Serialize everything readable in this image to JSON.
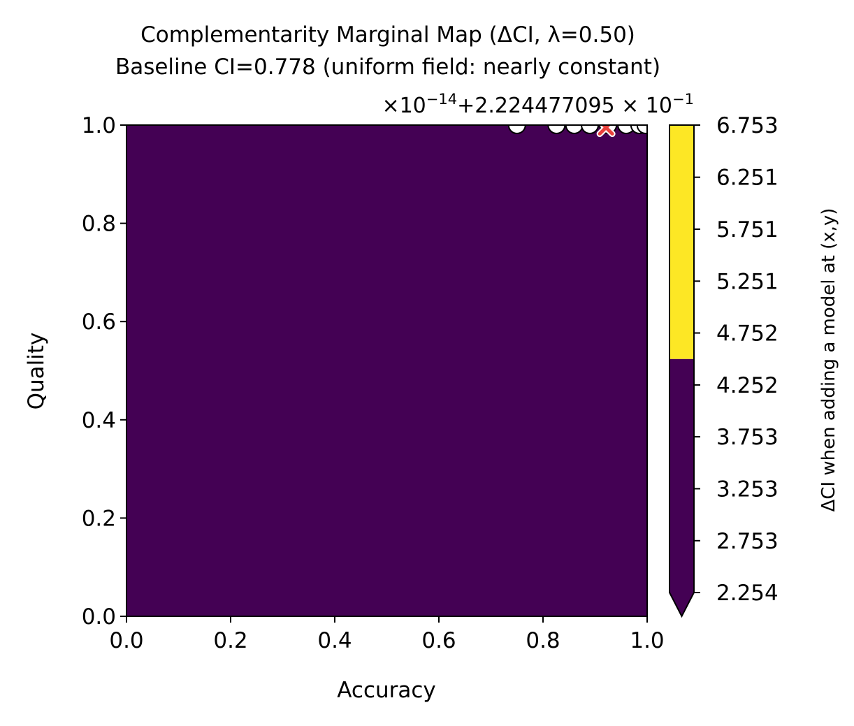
{
  "chart_data": {
    "type": "heatmap",
    "title": "Complementarity Marginal Map (ΔCI, λ=0.50)",
    "subtitle": "Baseline CI=0.778 (uniform field: nearly constant)",
    "xlabel": "Accuracy",
    "ylabel": "Quality",
    "xlim": [
      0.0,
      1.0
    ],
    "ylim": [
      0.0,
      1.0
    ],
    "x_ticks": [
      "0.0",
      "0.2",
      "0.4",
      "0.6",
      "0.8",
      "1.0"
    ],
    "y_ticks": [
      "0.0",
      "0.2",
      "0.4",
      "0.6",
      "0.8",
      "1.0"
    ],
    "field_color": "#440154",
    "grid": false,
    "offset_text": {
      "prefix": "×10",
      "exp1": "−14",
      "middle": "+2.224477095 × 10",
      "exp2": "−1"
    },
    "colorbar": {
      "label": "ΔCI when adding a model at (x,y)",
      "ticks": [
        "2.254",
        "2.753",
        "3.253",
        "3.753",
        "4.252",
        "4.752",
        "5.251",
        "5.751",
        "6.251",
        "6.753"
      ],
      "range": [
        2.254,
        6.753
      ],
      "bands": [
        {
          "from": 2.254,
          "to": 4.502,
          "color": "#440154"
        },
        {
          "from": 4.502,
          "to": 6.753,
          "color": "#fde725"
        }
      ],
      "extend": "min"
    },
    "existing_models": {
      "marker": "circle",
      "face_color": "#ffffff",
      "edge_color": "#000000",
      "points": [
        {
          "x": 0.75,
          "y": 1.0
        },
        {
          "x": 0.826,
          "y": 1.0
        },
        {
          "x": 0.86,
          "y": 1.0
        },
        {
          "x": 0.89,
          "y": 1.0
        },
        {
          "x": 0.925,
          "y": 1.0
        },
        {
          "x": 0.96,
          "y": 1.0
        },
        {
          "x": 0.985,
          "y": 1.0
        },
        {
          "x": 0.997,
          "y": 1.0
        }
      ]
    },
    "best_point": {
      "x": 0.921,
      "y": 0.995,
      "marker": "x",
      "color": "#e8413c"
    }
  }
}
